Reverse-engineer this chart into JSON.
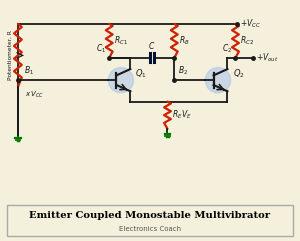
{
  "bg_color": "#f5f0dc",
  "wire_color": "#1a1a1a",
  "resistor_color": "#cc2200",
  "transistor_circle_color": "#99bbee",
  "transistor_circle_alpha": 0.45,
  "title": "Emitter Coupled Monostable Multivibrator",
  "subtitle": "Electronics Coach",
  "title_bg": "#f5f0dc",
  "title_border": "#aaaaaa",
  "ground_color": "#007700",
  "caption_color": "#444444"
}
